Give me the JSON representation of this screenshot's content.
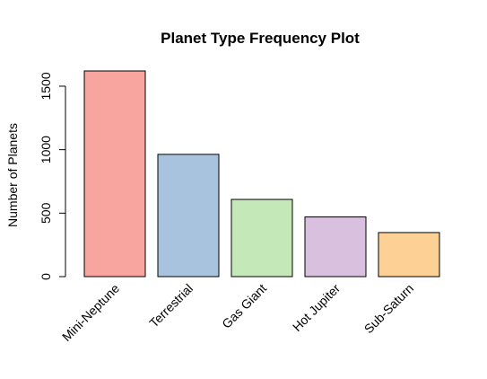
{
  "chart_data": {
    "type": "bar",
    "title": "Planet Type Frequency Plot",
    "xlabel": "",
    "ylabel": "Number of Planets",
    "categories": [
      "Mini-Neptune",
      "Terrestrial",
      "Gas Giant",
      "Hot Jupiter",
      "Sub-Saturn"
    ],
    "values": [
      1620,
      963,
      608,
      470,
      347
    ],
    "colors": [
      "#F8A5A0",
      "#A8C3DD",
      "#C4E8B8",
      "#D9C0DF",
      "#FDD195"
    ],
    "yticks": [
      0,
      500,
      1000,
      1500
    ],
    "ylim": [
      0,
      1620
    ],
    "grid": false,
    "legend": "none"
  }
}
